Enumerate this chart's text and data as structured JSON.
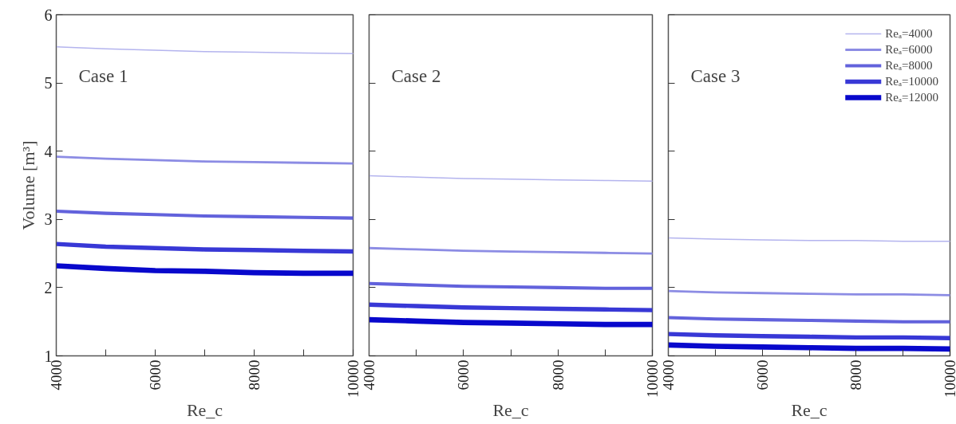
{
  "chart_data": [
    {
      "type": "line",
      "x": [
        4000,
        5000,
        6000,
        7000,
        8000,
        9000,
        10000
      ],
      "xlabel": "Re_c",
      "ylabel": "Volume [m³]",
      "annotations": [
        "Case 1"
      ],
      "xlim": [
        4000,
        10000
      ],
      "xticks": [
        4000,
        {
          "value": 5000,
          "label": null
        },
        6000,
        {
          "value": 7000,
          "label": null
        },
        8000,
        {
          "value": 9000,
          "label": null
        },
        10000
      ],
      "ylim": [
        1,
        6
      ],
      "yticks": [
        1,
        2,
        3,
        4,
        5,
        6
      ],
      "grid": false,
      "legend": false,
      "series": [
        {
          "color": "#b4b4ee",
          "values": [
            5.53,
            5.5,
            5.48,
            5.46,
            5.45,
            5.44,
            5.43
          ]
        },
        {
          "color": "#8c8ce4",
          "values": [
            3.92,
            3.89,
            3.87,
            3.85,
            3.84,
            3.83,
            3.82
          ]
        },
        {
          "color": "#6262dc",
          "values": [
            3.12,
            3.09,
            3.07,
            3.05,
            3.04,
            3.03,
            3.02
          ]
        },
        {
          "color": "#3838d6",
          "values": [
            2.64,
            2.6,
            2.58,
            2.56,
            2.55,
            2.54,
            2.53
          ]
        },
        {
          "color": "#0808cc",
          "values": [
            2.32,
            2.28,
            2.25,
            2.24,
            2.22,
            2.21,
            2.21
          ]
        }
      ]
    },
    {
      "type": "line",
      "x": [
        4000,
        5000,
        6000,
        7000,
        8000,
        9000,
        10000
      ],
      "xlabel": "Re_c",
      "annotations": [
        "Case 2"
      ],
      "xlim": [
        4000,
        10000
      ],
      "xticks": [
        4000,
        {
          "value": 5000,
          "label": null
        },
        6000,
        {
          "value": 7000,
          "label": null
        },
        8000,
        {
          "value": 9000,
          "label": null
        },
        10000
      ],
      "ylim": [
        1,
        6
      ],
      "yticks": [
        1,
        2,
        3,
        4,
        5,
        6
      ],
      "tick_labels": "x",
      "grid": false,
      "legend": false,
      "series": [
        {
          "color": "#b4b4ee",
          "values": [
            3.64,
            3.62,
            3.6,
            3.59,
            3.58,
            3.57,
            3.56
          ]
        },
        {
          "color": "#8c8ce4",
          "values": [
            2.58,
            2.56,
            2.54,
            2.53,
            2.52,
            2.51,
            2.5
          ]
        },
        {
          "color": "#6262dc",
          "values": [
            2.06,
            2.04,
            2.02,
            2.01,
            2.0,
            1.99,
            1.99
          ]
        },
        {
          "color": "#3838d6",
          "values": [
            1.75,
            1.73,
            1.71,
            1.7,
            1.69,
            1.68,
            1.67
          ]
        },
        {
          "color": "#0808cc",
          "values": [
            1.53,
            1.51,
            1.49,
            1.48,
            1.47,
            1.46,
            1.46
          ]
        }
      ]
    },
    {
      "type": "line",
      "x": [
        4000,
        5000,
        6000,
        7000,
        8000,
        9000,
        10000
      ],
      "xlabel": "Re_c",
      "annotations": [
        "Case 3"
      ],
      "xlim": [
        4000,
        10000
      ],
      "xticks": [
        4000,
        {
          "value": 5000,
          "label": null
        },
        6000,
        {
          "value": 7000,
          "label": null
        },
        8000,
        {
          "value": 9000,
          "label": null
        },
        10000
      ],
      "ylim": [
        1,
        6
      ],
      "yticks": [
        1,
        2,
        3,
        4,
        5,
        6
      ],
      "tick_labels": "x",
      "grid": false,
      "legend": "top right",
      "series": [
        {
          "name": "Reₐ=4000",
          "color": "#b4b4ee",
          "values": [
            2.73,
            2.71,
            2.7,
            2.69,
            2.69,
            2.68,
            2.68
          ]
        },
        {
          "name": "Reₐ=6000",
          "color": "#8c8ce4",
          "values": [
            1.95,
            1.93,
            1.92,
            1.91,
            1.9,
            1.9,
            1.89
          ]
        },
        {
          "name": "Reₐ=8000",
          "color": "#6262dc",
          "values": [
            1.56,
            1.54,
            1.53,
            1.52,
            1.51,
            1.5,
            1.5
          ]
        },
        {
          "name": "Reₐ=10000",
          "color": "#3838d6",
          "values": [
            1.32,
            1.3,
            1.29,
            1.28,
            1.27,
            1.27,
            1.26
          ]
        },
        {
          "name": "Reₐ=12000",
          "color": "#0808cc",
          "values": [
            1.16,
            1.14,
            1.13,
            1.12,
            1.11,
            1.11,
            1.1
          ]
        }
      ]
    }
  ]
}
